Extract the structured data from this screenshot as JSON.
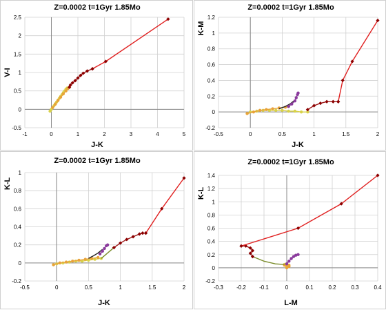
{
  "colors": {
    "red": "#e02020",
    "dark_red": "#9b1616",
    "dark_red_marker": "#8b0000",
    "orange": "#e8a33a",
    "yellow": "#d8d24a",
    "olive": "#7a8c2a",
    "purple": "#8a3a9c",
    "black": "#222222",
    "grid": "#d0d0d0"
  },
  "chart_data": [
    {
      "type": "line",
      "title": "Z=0.0002  t=1Gyr  1.85Mo",
      "xlabel": "J-K",
      "ylabel": "V-I",
      "xlim": [
        -1,
        5
      ],
      "ylim": [
        -0.5,
        2.5
      ],
      "xticks": [
        -1,
        0,
        1,
        2,
        3,
        4,
        5
      ],
      "yticks": [
        -0.5,
        0,
        0.5,
        1,
        1.5,
        2,
        2.5
      ],
      "xtick_labels": [
        "-1",
        "0",
        "1",
        "2",
        "3",
        "4",
        "5"
      ],
      "ytick_labels": [
        "-0.5",
        "0",
        "0.5",
        "1",
        "1.5",
        "2",
        "2.5"
      ],
      "series": [
        {
          "color": "#d8d24a",
          "marker": "circle",
          "points": [
            [
              -0.05,
              -0.05
            ],
            [
              0.0,
              0.0
            ],
            [
              0.05,
              0.05
            ],
            [
              0.1,
              0.1
            ],
            [
              0.15,
              0.15
            ],
            [
              0.2,
              0.2
            ],
            [
              0.25,
              0.25
            ],
            [
              0.3,
              0.3
            ],
            [
              0.35,
              0.35
            ],
            [
              0.4,
              0.4
            ],
            [
              0.45,
              0.45
            ],
            [
              0.5,
              0.5
            ],
            [
              0.55,
              0.55
            ],
            [
              0.6,
              0.58
            ]
          ]
        },
        {
          "color": "#e8a33a",
          "marker": "circle",
          "points": [
            [
              0.05,
              0.05
            ],
            [
              0.15,
              0.14
            ],
            [
              0.25,
              0.24
            ],
            [
              0.35,
              0.33
            ],
            [
              0.45,
              0.42
            ],
            [
              0.55,
              0.5
            ],
            [
              0.62,
              0.56
            ],
            [
              0.68,
              0.6
            ]
          ]
        },
        {
          "color": "#9b1616",
          "marker": "diamond",
          "points": [
            [
              0.68,
              0.6
            ],
            [
              0.72,
              0.66
            ],
            [
              0.8,
              0.72
            ],
            [
              0.9,
              0.78
            ],
            [
              1.0,
              0.85
            ],
            [
              1.1,
              0.92
            ],
            [
              1.2,
              0.98
            ],
            [
              1.35,
              1.04
            ],
            [
              1.55,
              1.1
            ]
          ]
        },
        {
          "color": "#e02020",
          "marker": "diamond",
          "points": [
            [
              1.55,
              1.1
            ],
            [
              2.05,
              1.3
            ],
            [
              4.4,
              2.45
            ]
          ]
        }
      ]
    },
    {
      "type": "line",
      "title": "Z=0.0002  t=1Gyr  1.85Mo",
      "xlabel": "J-K",
      "ylabel": "K-M",
      "xlim": [
        -0.5,
        2
      ],
      "ylim": [
        -0.2,
        1.2
      ],
      "xticks": [
        -0.5,
        0,
        0.5,
        1,
        1.5,
        2
      ],
      "yticks": [
        -0.2,
        0,
        0.2,
        0.4,
        0.6,
        0.8,
        1,
        1.2
      ],
      "xtick_labels": [
        "-0.5",
        "0",
        "0.5",
        "1",
        "1.5",
        "2"
      ],
      "ytick_labels": [
        "-0.2",
        "0",
        "0.2",
        "0.4",
        "0.6",
        "0.8",
        "1",
        "1.2"
      ],
      "series": [
        {
          "color": "#d8d24a",
          "marker": "circle",
          "points": [
            [
              -0.05,
              -0.02
            ],
            [
              0.0,
              0.0
            ],
            [
              0.1,
              0.01
            ],
            [
              0.2,
              0.02
            ],
            [
              0.3,
              0.02
            ],
            [
              0.4,
              0.02
            ],
            [
              0.5,
              0.02
            ],
            [
              0.6,
              0.01
            ],
            [
              0.7,
              0.01
            ],
            [
              0.8,
              0.0
            ],
            [
              0.9,
              0.0
            ]
          ]
        },
        {
          "color": "#e8a33a",
          "marker": "circle",
          "points": [
            [
              -0.05,
              -0.02
            ],
            [
              0.05,
              0.0
            ],
            [
              0.15,
              0.02
            ],
            [
              0.25,
              0.03
            ],
            [
              0.35,
              0.04
            ],
            [
              0.45,
              0.05
            ],
            [
              0.55,
              0.06
            ],
            [
              0.6,
              0.07
            ]
          ]
        },
        {
          "color": "#222222",
          "marker": "none",
          "points": [
            [
              0.45,
              0.04
            ],
            [
              0.55,
              0.07
            ],
            [
              0.62,
              0.1
            ],
            [
              0.7,
              0.15
            ]
          ]
        },
        {
          "color": "#8a3a9c",
          "marker": "circle",
          "points": [
            [
              0.6,
              0.07
            ],
            [
              0.65,
              0.1
            ],
            [
              0.7,
              0.14
            ],
            [
              0.72,
              0.18
            ],
            [
              0.74,
              0.22
            ],
            [
              0.75,
              0.24
            ]
          ]
        },
        {
          "color": "#9b1616",
          "marker": "diamond",
          "points": [
            [
              0.9,
              0.03
            ],
            [
              1.0,
              0.08
            ],
            [
              1.1,
              0.11
            ],
            [
              1.2,
              0.13
            ],
            [
              1.3,
              0.13
            ],
            [
              1.38,
              0.13
            ]
          ]
        },
        {
          "color": "#e02020",
          "marker": "diamond",
          "points": [
            [
              1.38,
              0.13
            ],
            [
              1.45,
              0.4
            ],
            [
              1.6,
              0.64
            ],
            [
              2.0,
              1.16
            ]
          ]
        }
      ]
    },
    {
      "type": "line",
      "title": "Z=0.0002  t=1Gyr  1.85Mo",
      "xlabel": "J-K",
      "ylabel": "K-L",
      "xlim": [
        -0.5,
        2
      ],
      "ylim": [
        -0.2,
        1
      ],
      "xticks": [
        -0.5,
        0,
        0.5,
        1,
        1.5,
        2
      ],
      "yticks": [
        -0.2,
        0,
        0.2,
        0.4,
        0.6,
        0.8,
        1
      ],
      "xtick_labels": [
        "-0.5",
        "0",
        "0.5",
        "1",
        "1.5",
        "2"
      ],
      "ytick_labels": [
        "-0.2",
        "0",
        "0.2",
        "0.4",
        "0.6",
        "0.8",
        "1"
      ],
      "series": [
        {
          "color": "#d8d24a",
          "marker": "circle",
          "points": [
            [
              -0.05,
              -0.02
            ],
            [
              0.0,
              -0.01
            ],
            [
              0.1,
              0.0
            ],
            [
              0.2,
              0.01
            ],
            [
              0.3,
              0.02
            ],
            [
              0.4,
              0.02
            ],
            [
              0.5,
              0.03
            ],
            [
              0.6,
              0.04
            ],
            [
              0.7,
              0.05
            ]
          ]
        },
        {
          "color": "#e8a33a",
          "marker": "circle",
          "points": [
            [
              -0.05,
              -0.02
            ],
            [
              0.05,
              0.0
            ],
            [
              0.15,
              0.01
            ],
            [
              0.25,
              0.02
            ],
            [
              0.35,
              0.03
            ],
            [
              0.45,
              0.04
            ],
            [
              0.55,
              0.05
            ],
            [
              0.65,
              0.06
            ]
          ]
        },
        {
          "color": "#222222",
          "marker": "none",
          "points": [
            [
              0.5,
              0.05
            ],
            [
              0.58,
              0.08
            ],
            [
              0.65,
              0.11
            ],
            [
              0.72,
              0.15
            ]
          ]
        },
        {
          "color": "#8a3a9c",
          "marker": "circle",
          "points": [
            [
              0.68,
              0.1
            ],
            [
              0.72,
              0.13
            ],
            [
              0.75,
              0.16
            ],
            [
              0.78,
              0.19
            ],
            [
              0.8,
              0.2
            ]
          ]
        },
        {
          "color": "#7a8c2a",
          "marker": "none",
          "points": [
            [
              0.7,
              0.05
            ],
            [
              0.9,
              0.17
            ]
          ]
        },
        {
          "color": "#9b1616",
          "marker": "diamond",
          "points": [
            [
              0.9,
              0.17
            ],
            [
              1.0,
              0.22
            ],
            [
              1.1,
              0.26
            ],
            [
              1.2,
              0.29
            ],
            [
              1.3,
              0.32
            ],
            [
              1.35,
              0.33
            ],
            [
              1.4,
              0.33
            ]
          ]
        },
        {
          "color": "#e02020",
          "marker": "diamond",
          "points": [
            [
              1.4,
              0.33
            ],
            [
              1.65,
              0.6
            ],
            [
              2.0,
              0.94
            ]
          ]
        }
      ]
    },
    {
      "type": "line",
      "title": "Z=0.0002  t=1Gyr  1.85Mo",
      "xlabel": "L-M",
      "ylabel": "K-L",
      "xlim": [
        -0.3,
        0.4
      ],
      "ylim": [
        -0.2,
        1.4
      ],
      "xticks": [
        -0.3,
        -0.2,
        -0.1,
        0,
        0.1,
        0.2,
        0.3,
        0.4
      ],
      "yticks": [
        -0.2,
        0,
        0.2,
        0.4,
        0.6,
        0.8,
        1,
        1.2,
        1.4
      ],
      "xtick_labels": [
        "-0.3",
        "-0.2",
        "-0.1",
        "0",
        "0.1",
        "0.2",
        "0.3",
        "0.4"
      ],
      "ytick_labels": [
        "-0.2",
        "0",
        "0.2",
        "0.4",
        "0.6",
        "0.8",
        "1",
        "1.2",
        "1.4"
      ],
      "series": [
        {
          "color": "#d8d24a",
          "marker": "circle",
          "points": [
            [
              0.0,
              0.0
            ],
            [
              0.0,
              0.02
            ],
            [
              0.0,
              0.04
            ],
            [
              0.0,
              0.06
            ],
            [
              -0.01,
              0.05
            ],
            [
              0.0,
              0.03
            ]
          ]
        },
        {
          "color": "#e8a33a",
          "marker": "circle",
          "points": [
            [
              0.0,
              0.0
            ],
            [
              0.01,
              0.02
            ],
            [
              0.01,
              0.04
            ],
            [
              0.0,
              0.05
            ],
            [
              -0.01,
              0.04
            ]
          ]
        },
        {
          "color": "#7a8c2a",
          "marker": "none",
          "points": [
            [
              -0.15,
              0.17
            ],
            [
              -0.1,
              0.1
            ],
            [
              -0.05,
              0.06
            ],
            [
              -0.01,
              0.05
            ]
          ]
        },
        {
          "color": "#8a3a9c",
          "marker": "circle",
          "points": [
            [
              0.0,
              0.06
            ],
            [
              0.01,
              0.1
            ],
            [
              0.02,
              0.14
            ],
            [
              0.03,
              0.17
            ],
            [
              0.04,
              0.19
            ],
            [
              0.05,
              0.2
            ]
          ]
        },
        {
          "color": "#9b1616",
          "marker": "diamond",
          "points": [
            [
              -0.15,
              0.17
            ],
            [
              -0.16,
              0.22
            ],
            [
              -0.15,
              0.26
            ],
            [
              -0.16,
              0.3
            ],
            [
              -0.18,
              0.33
            ],
            [
              -0.2,
              0.33
            ]
          ]
        },
        {
          "color": "#e02020",
          "marker": "diamond",
          "points": [
            [
              -0.2,
              0.33
            ],
            [
              0.05,
              0.6
            ],
            [
              0.24,
              0.97
            ],
            [
              0.4,
              1.4
            ]
          ]
        }
      ]
    }
  ]
}
